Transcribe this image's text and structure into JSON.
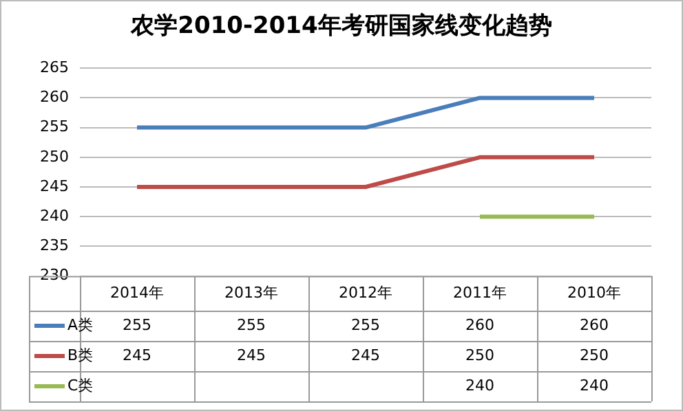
{
  "chart_data": {
    "type": "line",
    "title": "农学2010-2014年考研国家线变化趋势",
    "categories": [
      "2014年",
      "2013年",
      "2012年",
      "2011年",
      "2010年"
    ],
    "series": [
      {
        "name": "A类",
        "color": "#4a7ebb",
        "values": [
          255,
          255,
          255,
          260,
          260
        ]
      },
      {
        "name": "B类",
        "color": "#be4b48",
        "values": [
          245,
          245,
          245,
          250,
          250
        ]
      },
      {
        "name": "C类",
        "color": "#98b954",
        "values": [
          null,
          null,
          null,
          240,
          240
        ]
      }
    ],
    "ylim": [
      230,
      265
    ],
    "yticks": [
      230,
      235,
      240,
      245,
      250,
      255,
      260,
      265
    ],
    "grid": "y",
    "legend": "bottom",
    "marker": "none",
    "line_style": "solid",
    "data_labels": true
  }
}
